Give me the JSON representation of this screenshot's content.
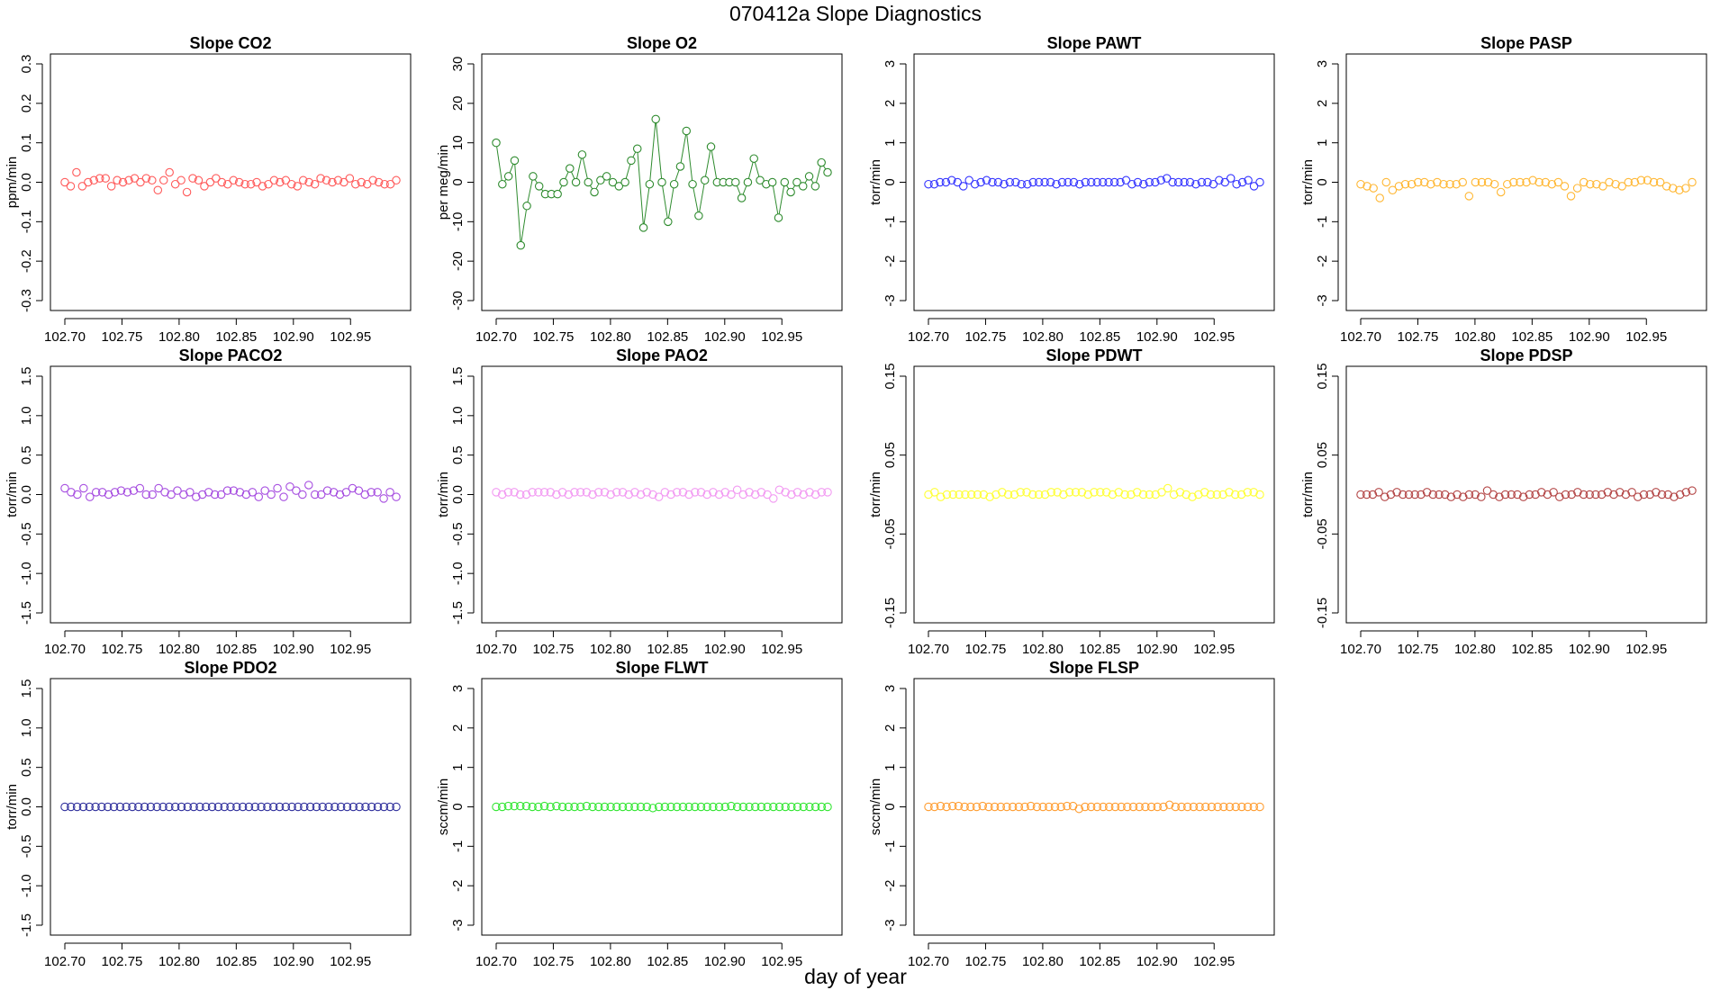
{
  "title": "070412a   Slope Diagnostics",
  "xlabel": "day of year",
  "chart_data": [
    {
      "type": "scatter",
      "title": "Slope CO2",
      "ylabel": "ppm/min",
      "color": "#ff5a5a",
      "lines": false,
      "xlim": [
        102.7,
        102.99
      ],
      "ylim": [
        -0.3,
        0.3
      ],
      "yticks": [
        "-0.3",
        "-0.2",
        "-0.1",
        "0.0",
        "0.1",
        "0.2",
        "0.3"
      ],
      "xticks": [
        "102.70",
        "102.75",
        "102.80",
        "102.85",
        "102.90",
        "102.95"
      ],
      "y": [
        0.0,
        -0.01,
        0.025,
        -0.01,
        0.0,
        0.005,
        0.01,
        0.01,
        -0.01,
        0.005,
        0.0,
        0.005,
        0.01,
        0.0,
        0.01,
        0.005,
        -0.02,
        0.005,
        0.025,
        -0.005,
        0.005,
        -0.025,
        0.01,
        0.005,
        -0.01,
        0.0,
        0.01,
        0.0,
        -0.005,
        0.005,
        0.0,
        -0.005,
        -0.005,
        0.0,
        -0.01,
        -0.005,
        0.005,
        0.0,
        0.005,
        -0.005,
        -0.01,
        0.005,
        0.0,
        -0.005,
        0.01,
        0.005,
        0.0,
        0.005,
        0.0,
        0.01,
        -0.005,
        0.0,
        -0.005,
        0.005,
        0.0,
        -0.005,
        -0.005,
        0.005
      ]
    },
    {
      "type": "line",
      "title": "Slope O2",
      "ylabel": "per meg/min",
      "color": "#2e8b2e",
      "lines": true,
      "xlim": [
        102.7,
        102.99
      ],
      "ylim": [
        -30,
        30
      ],
      "yticks": [
        "-30",
        "-20",
        "-10",
        "0",
        "10",
        "20",
        "30"
      ],
      "xticks": [
        "102.70",
        "102.75",
        "102.80",
        "102.85",
        "102.90",
        "102.95"
      ],
      "y": [
        10,
        -0.5,
        1.5,
        5.5,
        -16,
        -6,
        1.5,
        -1,
        -3,
        -3,
        -3,
        0,
        3.5,
        0,
        7,
        0,
        -2.5,
        0.5,
        1.5,
        0,
        -1,
        0,
        5.5,
        8.5,
        -11.5,
        -0.5,
        16,
        0,
        -10,
        -0.5,
        4,
        13,
        -0.5,
        -8.5,
        0.5,
        9,
        0,
        0,
        0,
        0,
        -4,
        0,
        6,
        0.5,
        -0.5,
        0,
        -9,
        0,
        -2.5,
        0,
        -1,
        1.5,
        -1,
        5,
        2.5
      ]
    },
    {
      "type": "scatter",
      "title": "Slope PAWT",
      "ylabel": "torr/min",
      "color": "#3333ff",
      "lines": false,
      "xlim": [
        102.7,
        102.99
      ],
      "ylim": [
        -3,
        3
      ],
      "yticks": [
        "-3",
        "-2",
        "-1",
        "0",
        "1",
        "2",
        "3"
      ],
      "xticks": [
        "102.70",
        "102.75",
        "102.80",
        "102.85",
        "102.90",
        "102.95"
      ],
      "y": [
        -0.05,
        -0.05,
        0.0,
        0.0,
        0.05,
        0.0,
        -0.1,
        0.05,
        -0.05,
        0.0,
        0.05,
        0.0,
        0.0,
        -0.05,
        0.0,
        0.0,
        -0.05,
        -0.05,
        0.0,
        0.0,
        0.0,
        0.0,
        -0.05,
        0.0,
        0.0,
        0.0,
        -0.05,
        0.0,
        0.0,
        0.0,
        0.0,
        0.0,
        0.0,
        0.0,
        0.05,
        -0.05,
        0.0,
        -0.05,
        0.0,
        0.0,
        0.05,
        0.1,
        0.0,
        0.0,
        0.0,
        0.0,
        -0.05,
        0.0,
        0.0,
        -0.05,
        0.05,
        0.0,
        0.1,
        -0.05,
        0.0,
        0.05,
        -0.1,
        0.0
      ]
    },
    {
      "type": "scatter",
      "title": "Slope PASP",
      "ylabel": "torr/min",
      "color": "#ffb733",
      "lines": false,
      "xlim": [
        102.7,
        102.99
      ],
      "ylim": [
        -3,
        3
      ],
      "yticks": [
        "-3",
        "-2",
        "-1",
        "0",
        "1",
        "2",
        "3"
      ],
      "xticks": [
        "102.70",
        "102.75",
        "102.80",
        "102.85",
        "102.90",
        "102.95"
      ],
      "y": [
        -0.05,
        -0.1,
        -0.15,
        -0.4,
        0.0,
        -0.2,
        -0.1,
        -0.05,
        -0.05,
        0.0,
        0.0,
        -0.05,
        0.0,
        -0.05,
        -0.05,
        -0.05,
        0.0,
        -0.35,
        0.0,
        0.0,
        0.0,
        -0.05,
        -0.25,
        -0.05,
        0.0,
        0.0,
        0.0,
        0.05,
        0.0,
        0.0,
        -0.05,
        0.0,
        -0.1,
        -0.35,
        -0.15,
        0.0,
        -0.05,
        -0.05,
        -0.1,
        0.0,
        -0.05,
        -0.1,
        0.0,
        0.0,
        0.05,
        0.05,
        0.0,
        0.0,
        -0.1,
        -0.15,
        -0.2,
        -0.15,
        0.0
      ]
    },
    {
      "type": "scatter",
      "title": "Slope PACO2",
      "ylabel": "torr/min",
      "color": "#a64de0",
      "lines": false,
      "xlim": [
        102.7,
        102.99
      ],
      "ylim": [
        -1.5,
        1.5
      ],
      "yticks": [
        "-1.5",
        "-1.0",
        "-0.5",
        "0.0",
        "0.5",
        "1.0",
        "1.5"
      ],
      "xticks": [
        "102.70",
        "102.75",
        "102.80",
        "102.85",
        "102.90",
        "102.95"
      ],
      "y": [
        0.08,
        0.03,
        0.0,
        0.08,
        -0.03,
        0.03,
        0.03,
        0.0,
        0.03,
        0.05,
        0.03,
        0.05,
        0.08,
        0.0,
        0.0,
        0.08,
        0.03,
        0.0,
        0.05,
        0.0,
        0.03,
        -0.03,
        0.0,
        0.03,
        0.0,
        0.0,
        0.05,
        0.05,
        0.03,
        0.0,
        0.03,
        -0.03,
        0.05,
        0.0,
        0.08,
        -0.03,
        0.1,
        0.05,
        0.0,
        0.12,
        0.0,
        0.0,
        0.05,
        0.03,
        0.0,
        0.03,
        0.08,
        0.05,
        0.0,
        0.03,
        0.03,
        -0.05,
        0.03,
        -0.03
      ]
    },
    {
      "type": "scatter",
      "title": "Slope PAO2",
      "ylabel": "torr/min",
      "color": "#f299f2",
      "lines": false,
      "xlim": [
        102.7,
        102.99
      ],
      "ylim": [
        -1.5,
        1.5
      ],
      "yticks": [
        "-1.5",
        "-1.0",
        "-0.5",
        "0.0",
        "0.5",
        "1.0",
        "1.5"
      ],
      "xticks": [
        "102.70",
        "102.75",
        "102.80",
        "102.85",
        "102.90",
        "102.95"
      ],
      "y": [
        0.03,
        0.0,
        0.03,
        0.03,
        0.0,
        0.0,
        0.03,
        0.03,
        0.03,
        0.03,
        0.0,
        0.03,
        0.0,
        0.03,
        0.03,
        0.03,
        0.0,
        0.03,
        0.03,
        0.0,
        0.03,
        0.03,
        0.0,
        0.03,
        0.0,
        0.03,
        0.0,
        -0.03,
        0.03,
        0.0,
        0.03,
        0.03,
        0.0,
        0.03,
        0.03,
        0.0,
        0.03,
        0.0,
        0.03,
        0.0,
        0.06,
        0.0,
        0.03,
        0.0,
        0.03,
        0.0,
        -0.05,
        0.06,
        0.03,
        0.0,
        0.03,
        0.0,
        0.03,
        0.0,
        0.03,
        0.03
      ]
    },
    {
      "type": "scatter",
      "title": "Slope PDWT",
      "ylabel": "torr/min",
      "color": "#ffff33",
      "lines": false,
      "xlim": [
        102.7,
        102.99
      ],
      "ylim": [
        -0.15,
        0.15
      ],
      "yticks": [
        "-0.15",
        "-0.05",
        "0.05",
        "0.15"
      ],
      "xticks": [
        "102.70",
        "102.75",
        "102.80",
        "102.85",
        "102.90",
        "102.95"
      ],
      "y": [
        0.0,
        0.003,
        -0.003,
        0.0,
        0.0,
        0.0,
        0.0,
        0.0,
        0.0,
        0.0,
        -0.003,
        0.0,
        0.003,
        0.0,
        0.0,
        0.003,
        0.003,
        0.0,
        0.0,
        0.0,
        0.003,
        0.003,
        0.0,
        0.003,
        0.003,
        0.003,
        0.0,
        0.003,
        0.003,
        0.003,
        0.0,
        0.003,
        0.0,
        0.0,
        0.003,
        0.0,
        0.0,
        0.0,
        0.003,
        0.008,
        0.0,
        0.003,
        0.0,
        -0.003,
        0.0,
        0.003,
        0.0,
        0.0,
        0.0,
        0.003,
        0.0,
        0.0,
        0.003,
        0.003,
        0.0
      ]
    },
    {
      "type": "scatter",
      "title": "Slope PDSP",
      "ylabel": "torr/min",
      "color": "#b34545",
      "lines": false,
      "xlim": [
        102.7,
        102.99
      ],
      "ylim": [
        -0.15,
        0.15
      ],
      "yticks": [
        "-0.15",
        "-0.05",
        "0.05",
        "0.15"
      ],
      "xticks": [
        "102.70",
        "102.75",
        "102.80",
        "102.85",
        "102.90",
        "102.95"
      ],
      "y": [
        0.0,
        0.0,
        0.0,
        0.003,
        -0.003,
        0.0,
        0.003,
        0.0,
        0.0,
        0.0,
        0.0,
        0.003,
        0.0,
        0.0,
        0.0,
        -0.003,
        0.0,
        -0.003,
        0.0,
        0.0,
        -0.003,
        0.005,
        0.0,
        -0.003,
        0.0,
        0.0,
        0.0,
        -0.003,
        0.0,
        0.0,
        0.003,
        0.0,
        0.003,
        -0.003,
        0.0,
        0.0,
        0.003,
        0.0,
        0.0,
        0.0,
        0.0,
        0.003,
        0.0,
        0.003,
        0.0,
        0.003,
        -0.003,
        0.0,
        0.0,
        0.003,
        0.0,
        0.0,
        -0.003,
        0.0,
        0.003,
        0.005
      ]
    },
    {
      "type": "scatter",
      "title": "Slope PDO2",
      "ylabel": "torr/min",
      "color": "#33339e",
      "lines": false,
      "xlim": [
        102.7,
        102.99
      ],
      "ylim": [
        -1.5,
        1.5
      ],
      "yticks": [
        "-1.5",
        "-1.0",
        "-0.5",
        "0.0",
        "0.5",
        "1.0",
        "1.5"
      ],
      "xticks": [
        "102.70",
        "102.75",
        "102.80",
        "102.85",
        "102.90",
        "102.95"
      ],
      "y": [
        0,
        0,
        0,
        0,
        0,
        0,
        0,
        0,
        0,
        0,
        0,
        0,
        0,
        0,
        0,
        0,
        0,
        0,
        0,
        0,
        0,
        0,
        0,
        0,
        0,
        0,
        0,
        0,
        0,
        0,
        0,
        0,
        0,
        0,
        0,
        0,
        0,
        0,
        0,
        0,
        0,
        0,
        0,
        0,
        0,
        0,
        0,
        0,
        0,
        0,
        0,
        0,
        0,
        0,
        0
      ]
    },
    {
      "type": "scatter",
      "title": "Slope FLWT",
      "ylabel": "sccm/min",
      "color": "#33e633",
      "lines": false,
      "xlim": [
        102.7,
        102.99
      ],
      "ylim": [
        -3,
        3
      ],
      "yticks": [
        "-3",
        "-2",
        "-1",
        "0",
        "1",
        "2",
        "3"
      ],
      "xticks": [
        "102.70",
        "102.75",
        "102.80",
        "102.85",
        "102.90",
        "102.95"
      ],
      "y": [
        0,
        0,
        0.02,
        0.02,
        0.02,
        0.02,
        0,
        0,
        0.02,
        0,
        0.02,
        0,
        0,
        0,
        0,
        0.02,
        0,
        0,
        0,
        0,
        0,
        0,
        0,
        0,
        0,
        0,
        -0.03,
        0,
        0,
        0,
        0,
        0,
        0,
        0,
        0,
        0,
        0,
        0,
        0,
        0.02,
        0,
        0,
        0,
        0,
        0,
        0,
        0,
        0,
        0,
        0,
        0,
        0,
        0,
        0,
        0,
        0
      ]
    },
    {
      "type": "scatter",
      "title": "Slope FLSP",
      "ylabel": "sccm/min",
      "color": "#ff9e33",
      "lines": false,
      "xlim": [
        102.7,
        102.99
      ],
      "ylim": [
        -3,
        3
      ],
      "yticks": [
        "-3",
        "-2",
        "-1",
        "0",
        "1",
        "2",
        "3"
      ],
      "xticks": [
        "102.70",
        "102.75",
        "102.80",
        "102.85",
        "102.90",
        "102.95"
      ],
      "y": [
        0,
        0,
        0.02,
        0,
        0.02,
        0.02,
        0,
        0,
        0,
        0.02,
        0,
        0,
        0,
        0,
        0,
        0,
        0,
        0.02,
        0,
        0,
        0,
        0,
        0,
        0.02,
        0.02,
        -0.05,
        0,
        0,
        0,
        0,
        0,
        0,
        0,
        0,
        0,
        0,
        0,
        0,
        0,
        0,
        0.05,
        0,
        0,
        0,
        0,
        0,
        0,
        0,
        0,
        0,
        0,
        0,
        0,
        0,
        0,
        0
      ]
    }
  ]
}
